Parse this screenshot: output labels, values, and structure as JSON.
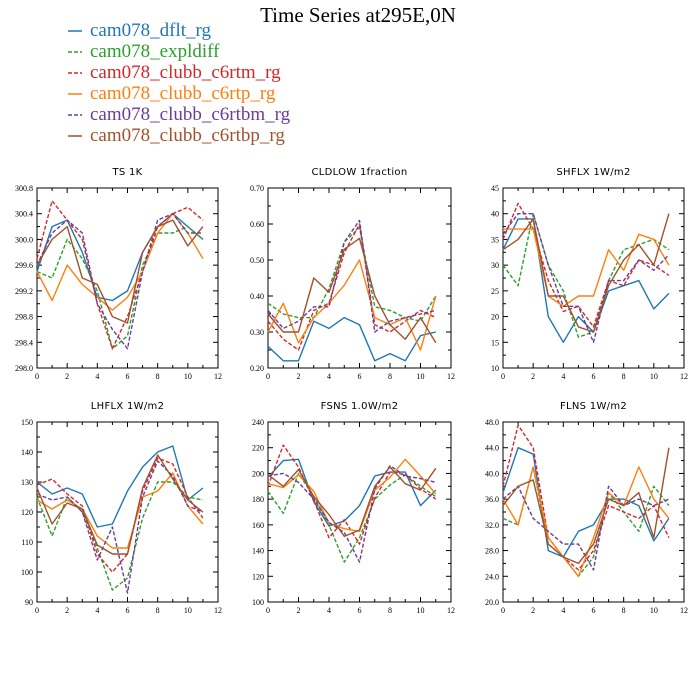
{
  "figure": {
    "title": "Time Series at295E,0N"
  },
  "legend": [
    {
      "name": "cam078_dflt_rg",
      "color": "#1f77b4",
      "dash": "solid"
    },
    {
      "name": "cam078_expldiff",
      "color": "#2ca02c",
      "dash": "dashed"
    },
    {
      "name": "cam078_clubb_c6rtm_rg",
      "color": "#d62728",
      "dash": "dashed"
    },
    {
      "name": "cam078_clubb_c6rtp_rg",
      "color": "#ff7f0e",
      "dash": "solid"
    },
    {
      "name": "cam078_clubb_c6rtbm_rg",
      "color": "#6a3d9a",
      "dash": "dashed"
    },
    {
      "name": "cam078_clubb_c6rtbp_rg",
      "color": "#a0522d",
      "dash": "solid"
    }
  ],
  "chart_data": [
    {
      "type": "line",
      "title": "TS   1K",
      "xlim": [
        0,
        12
      ],
      "ylim": [
        298.0,
        300.8
      ],
      "xticks": [
        "0",
        "2",
        "4",
        "6",
        "8",
        "10",
        "12"
      ],
      "yticks": [
        "298.0",
        "298.4",
        "298.8",
        "299.2",
        "299.6",
        "300.0",
        "300.4",
        "300.8"
      ],
      "x": [
        0,
        1,
        2,
        3,
        4,
        5,
        6,
        7,
        8,
        9,
        10,
        11
      ],
      "series": [
        {
          "values": [
            299.5,
            300.2,
            300.3,
            299.8,
            299.1,
            299.05,
            299.2,
            299.8,
            300.2,
            300.4,
            300.2,
            300.0
          ]
        },
        {
          "values": [
            299.5,
            299.4,
            300.0,
            299.7,
            299.2,
            298.3,
            298.5,
            299.6,
            300.1,
            300.1,
            300.2,
            300.0
          ]
        },
        {
          "values": [
            299.7,
            300.6,
            300.3,
            300.0,
            299.0,
            298.3,
            298.8,
            299.5,
            300.2,
            300.4,
            300.5,
            300.3
          ]
        },
        {
          "values": [
            299.5,
            299.05,
            299.6,
            299.3,
            299.1,
            298.9,
            299.1,
            299.5,
            300.1,
            300.4,
            300.1,
            299.7
          ]
        },
        {
          "values": [
            299.6,
            300.1,
            300.3,
            300.1,
            299.0,
            298.6,
            298.3,
            299.5,
            300.3,
            300.4,
            300.1,
            300.1
          ]
        },
        {
          "values": [
            299.6,
            300.0,
            300.2,
            299.4,
            299.3,
            298.8,
            298.7,
            299.8,
            300.2,
            300.3,
            299.9,
            300.2
          ]
        }
      ]
    },
    {
      "type": "line",
      "title": "CLDLOW   1fraction",
      "xlim": [
        0,
        12
      ],
      "ylim": [
        0.2,
        0.7
      ],
      "xticks": [
        "0",
        "2",
        "4",
        "6",
        "8",
        "10",
        "12"
      ],
      "yticks": [
        "0.20",
        "0.30",
        "0.40",
        "0.50",
        "0.60",
        "0.70"
      ],
      "x": [
        0,
        1,
        2,
        3,
        4,
        5,
        6,
        7,
        8,
        9,
        10,
        11
      ],
      "series": [
        {
          "values": [
            0.26,
            0.22,
            0.22,
            0.33,
            0.31,
            0.34,
            0.32,
            0.22,
            0.24,
            0.22,
            0.29,
            0.3
          ]
        },
        {
          "values": [
            0.38,
            0.35,
            0.34,
            0.34,
            0.42,
            0.55,
            0.59,
            0.37,
            0.36,
            0.34,
            0.33,
            0.4
          ]
        },
        {
          "values": [
            0.33,
            0.28,
            0.25,
            0.36,
            0.38,
            0.52,
            0.6,
            0.32,
            0.3,
            0.33,
            0.36,
            0.34
          ]
        },
        {
          "values": [
            0.3,
            0.38,
            0.27,
            0.34,
            0.38,
            0.43,
            0.5,
            0.34,
            0.32,
            0.34,
            0.25,
            0.4
          ]
        },
        {
          "values": [
            0.36,
            0.31,
            0.33,
            0.37,
            0.37,
            0.55,
            0.61,
            0.3,
            0.33,
            0.34,
            0.35,
            0.36
          ]
        },
        {
          "values": [
            0.35,
            0.3,
            0.3,
            0.45,
            0.41,
            0.53,
            0.56,
            0.4,
            0.32,
            0.28,
            0.34,
            0.27
          ]
        }
      ]
    },
    {
      "type": "line",
      "title": "SHFLX   1W/m2",
      "xlim": [
        0,
        12
      ],
      "ylim": [
        10,
        45
      ],
      "xticks": [
        "0",
        "2",
        "4",
        "6",
        "8",
        "10",
        "12"
      ],
      "yticks": [
        "10",
        "15",
        "20",
        "25",
        "30",
        "35",
        "40",
        "45"
      ],
      "x": [
        0,
        1,
        2,
        3,
        4,
        5,
        6,
        7,
        8,
        9,
        10,
        11
      ],
      "series": [
        {
          "values": [
            33,
            39,
            39,
            20,
            15,
            20,
            17,
            25,
            26,
            27,
            21.5,
            24.5
          ]
        },
        {
          "values": [
            30,
            26,
            40,
            30,
            25,
            16,
            17,
            27,
            33,
            34,
            35,
            33
          ]
        },
        {
          "values": [
            35,
            42,
            37,
            27,
            21,
            22,
            18,
            27,
            26,
            31,
            30,
            28
          ]
        },
        {
          "values": [
            37,
            37,
            37,
            24,
            22,
            24,
            24,
            33,
            29,
            36,
            35,
            30
          ]
        },
        {
          "values": [
            36,
            40,
            40,
            30,
            22,
            22,
            15,
            27,
            27,
            31,
            29,
            32
          ]
        },
        {
          "values": [
            33,
            35,
            39,
            24,
            24,
            18,
            17,
            26,
            31,
            34,
            30,
            40
          ]
        }
      ]
    },
    {
      "type": "line",
      "title": "LHFLX   1W/m2",
      "xlim": [
        0,
        12
      ],
      "ylim": [
        90,
        150
      ],
      "xticks": [
        "0",
        "2",
        "4",
        "6",
        "8",
        "10",
        "12"
      ],
      "yticks": [
        "90",
        "100",
        "110",
        "120",
        "130",
        "140",
        "150"
      ],
      "x": [
        0,
        1,
        2,
        3,
        4,
        5,
        6,
        7,
        8,
        9,
        10,
        11
      ],
      "series": [
        {
          "values": [
            130,
            126,
            128,
            126,
            115,
            116,
            127,
            135,
            140,
            142,
            124,
            128
          ]
        },
        {
          "values": [
            125,
            112,
            125,
            120,
            108,
            94,
            98,
            118,
            130,
            130,
            125,
            124
          ]
        },
        {
          "values": [
            129,
            131,
            126,
            122,
            106,
            100,
            106,
            127,
            138,
            136,
            125,
            118
          ]
        },
        {
          "values": [
            124,
            121,
            124,
            121,
            112,
            108,
            108,
            125,
            127,
            133,
            122,
            116
          ]
        },
        {
          "values": [
            126,
            124,
            125,
            120,
            104,
            115,
            93,
            125,
            137,
            132,
            122,
            120
          ]
        },
        {
          "values": [
            128,
            116,
            123,
            121,
            109,
            106,
            106,
            128,
            139,
            131,
            124,
            120
          ]
        }
      ]
    },
    {
      "type": "line",
      "title": "FSNS   1.0W/m2",
      "xlim": [
        0,
        12
      ],
      "ylim": [
        100,
        240
      ],
      "xticks": [
        "0",
        "2",
        "4",
        "6",
        "8",
        "10",
        "12"
      ],
      "yticks": [
        "100",
        "120",
        "140",
        "160",
        "180",
        "200",
        "220",
        "240"
      ],
      "x": [
        0,
        1,
        2,
        3,
        4,
        5,
        6,
        7,
        8,
        9,
        10,
        11
      ],
      "series": [
        {
          "values": [
            197,
            210,
            211,
            178,
            159,
            163,
            175,
            198,
            201,
            201,
            175,
            187
          ]
        },
        {
          "values": [
            186,
            169,
            200,
            182,
            160,
            131,
            150,
            180,
            191,
            199,
            190,
            182
          ]
        },
        {
          "values": [
            190,
            222,
            205,
            179,
            150,
            164,
            145,
            181,
            201,
            199,
            188,
            180
          ]
        },
        {
          "values": [
            192,
            189,
            199,
            186,
            161,
            157,
            155,
            187,
            197,
            211,
            198,
            184
          ]
        },
        {
          "values": [
            198,
            200,
            193,
            180,
            162,
            154,
            131,
            188,
            206,
            198,
            196,
            193
          ]
        },
        {
          "values": [
            199,
            190,
            203,
            182,
            168,
            151,
            156,
            190,
            205,
            192,
            187,
            204
          ]
        }
      ]
    },
    {
      "type": "line",
      "title": "FLNS   1W/m2",
      "xlim": [
        0,
        12
      ],
      "ylim": [
        20.0,
        48.0
      ],
      "xticks": [
        "0",
        "2",
        "4",
        "6",
        "8",
        "10",
        "12"
      ],
      "yticks": [
        "20.0",
        "24.0",
        "28.0",
        "32.0",
        "36.0",
        "40.0",
        "44.0",
        "48.0"
      ],
      "x": [
        0,
        1,
        2,
        3,
        4,
        5,
        6,
        7,
        8,
        9,
        10,
        11
      ],
      "series": [
        {
          "values": [
            37,
            44,
            43,
            28,
            27,
            31,
            32,
            36,
            36,
            35,
            29.5,
            33
          ]
        },
        {
          "values": [
            33,
            32,
            41,
            29,
            27,
            24,
            27,
            37,
            34,
            31,
            38,
            35
          ]
        },
        {
          "values": [
            38,
            47.5,
            44,
            30,
            27,
            25,
            28,
            35,
            34,
            33,
            35,
            30
          ]
        },
        {
          "values": [
            36,
            32,
            41,
            30,
            27,
            24,
            30,
            37,
            35,
            41,
            36,
            33
          ]
        },
        {
          "values": [
            36,
            38,
            33,
            31,
            29,
            29,
            25,
            38,
            35,
            36,
            35,
            36
          ]
        },
        {
          "values": [
            35,
            38,
            39,
            29,
            27,
            26,
            29,
            36,
            35,
            37,
            30,
            44
          ]
        }
      ]
    }
  ]
}
